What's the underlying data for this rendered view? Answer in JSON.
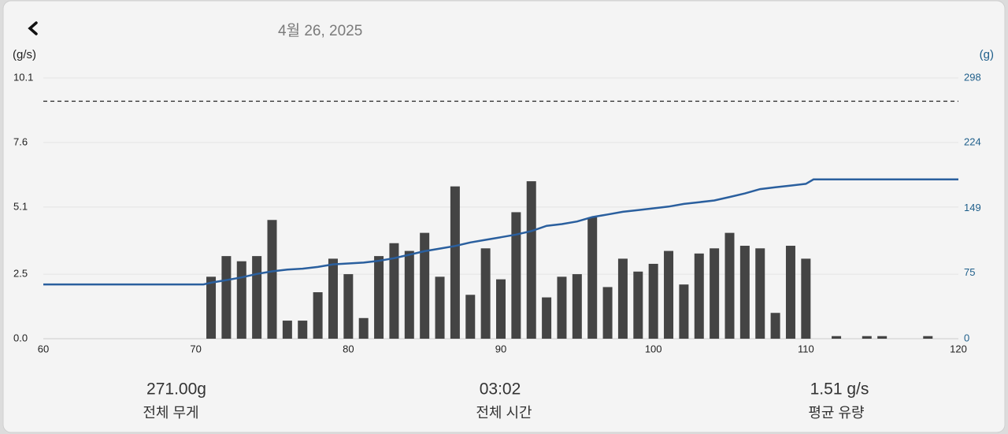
{
  "header": {
    "date": "4월 26, 2025"
  },
  "chart_data": {
    "type": "bar-line",
    "y_label": "(g/s)",
    "y2_label": "(g)",
    "xlim": [
      60,
      120
    ],
    "xticks": [
      60,
      70,
      80,
      90,
      100,
      110,
      120
    ],
    "ylim": [
      0,
      10.1
    ],
    "yticks": [
      {
        "value": 0,
        "label": "0.0"
      },
      2.5,
      5.1,
      7.6,
      10.1
    ],
    "y2lim": [
      0,
      298
    ],
    "y2ticks": [
      0,
      75,
      149,
      224,
      298
    ],
    "grid": true,
    "target_line": 9.2,
    "series": [
      {
        "type": "bar",
        "color": "#444444",
        "x": [
          71,
          72,
          73,
          74,
          75,
          76,
          77,
          78,
          79,
          80,
          81,
          82,
          83,
          84,
          85,
          86,
          87,
          88,
          89,
          90,
          91,
          92,
          93,
          94,
          95,
          96,
          97,
          98,
          99,
          100,
          101,
          102,
          103,
          104,
          105,
          106,
          107,
          108,
          109,
          110,
          112,
          114,
          115,
          118
        ],
        "values": [
          2.4,
          3.2,
          3.0,
          3.2,
          4.6,
          0.7,
          0.7,
          1.8,
          3.1,
          2.5,
          0.8,
          3.2,
          3.7,
          3.4,
          4.1,
          2.4,
          5.9,
          1.7,
          3.5,
          2.3,
          4.9,
          6.1,
          1.6,
          2.4,
          2.5,
          4.7,
          2.0,
          3.1,
          2.6,
          2.9,
          3.4,
          2.1,
          3.3,
          3.5,
          4.1,
          3.6,
          3.5,
          1.0,
          3.6,
          3.1,
          0.1,
          0.1,
          0.1,
          0.1
        ]
      },
      {
        "type": "line",
        "axis": "y2",
        "color": "#2a5f9e",
        "x": [
          60,
          70.5,
          71,
          72,
          73,
          74,
          75,
          76,
          77,
          78,
          79,
          80,
          81,
          82,
          83,
          84,
          85,
          86,
          87,
          88,
          89,
          90,
          91,
          92,
          93,
          94,
          95,
          96,
          97,
          98,
          99,
          100,
          101,
          102,
          103,
          104,
          105,
          106,
          107,
          108,
          109,
          110,
          110.5,
          120
        ],
        "values": [
          62,
          62,
          64,
          67,
          70,
          74,
          77,
          79,
          80,
          82,
          85,
          86,
          87,
          89,
          92,
          96,
          100,
          103,
          106,
          110,
          113,
          116,
          119,
          123,
          129,
          131,
          134,
          139,
          142,
          145,
          147,
          149,
          151,
          154,
          156,
          158,
          162,
          166,
          171,
          173,
          175,
          177,
          182,
          182
        ]
      }
    ]
  },
  "stats": [
    {
      "value": "271.00g",
      "label": "전체 무게"
    },
    {
      "value": "03:02",
      "label": "전체 시간"
    },
    {
      "value": "1.51 g/s",
      "label": "평균 유량"
    }
  ]
}
